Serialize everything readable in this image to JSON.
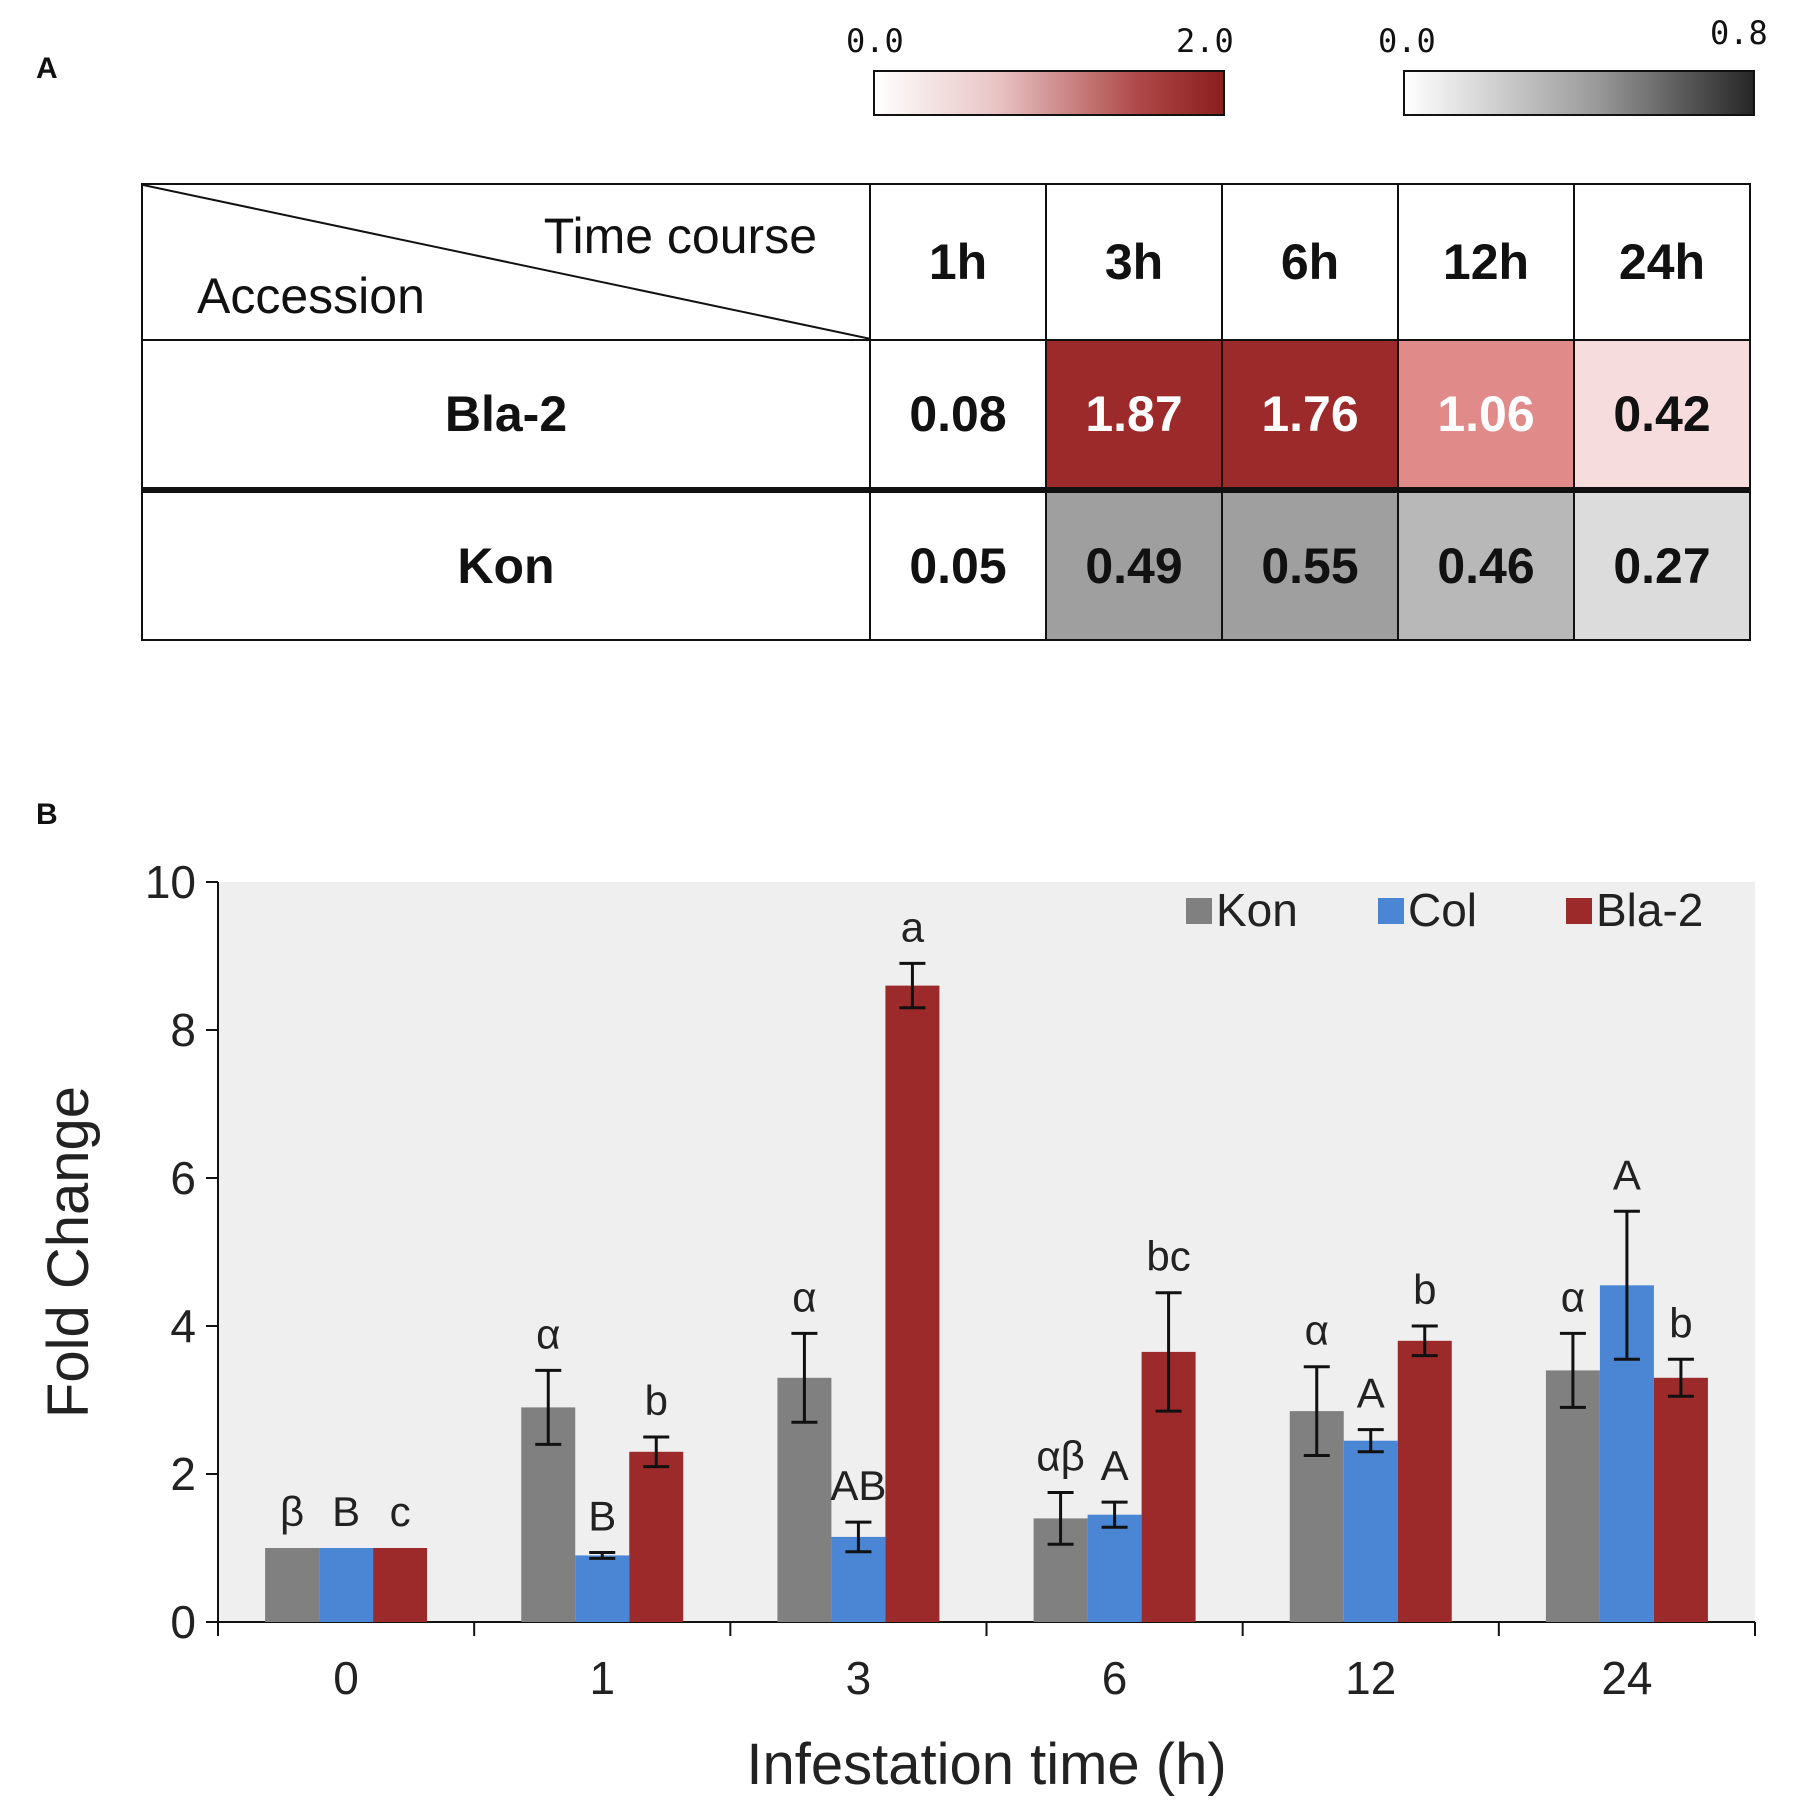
{
  "panel_a": {
    "label": "A",
    "colorbar_red": {
      "min_label": "0.0",
      "max_label": "2.0",
      "min": 0.0,
      "max": 2.0
    },
    "colorbar_gray": {
      "min_label": "0.0",
      "max_label": "0.8",
      "min": 0.0,
      "max": 0.8
    },
    "corner_time": "Time  course",
    "corner_accession": "Accession",
    "time_points": [
      "1h",
      "3h",
      "6h",
      "12h",
      "24h"
    ],
    "rows": [
      {
        "name": "Bla-2",
        "scale": "red",
        "values": [
          "0.08",
          "1.87",
          "1.76",
          "1.06",
          "0.42"
        ]
      },
      {
        "name": "Kon",
        "scale": "gray",
        "values": [
          "0.05",
          "0.49",
          "0.55",
          "0.46",
          "0.27"
        ]
      }
    ],
    "cell_colors": {
      "Bla-2": [
        "#ffffff",
        "#9c2a2a",
        "#9c2a2a",
        "#e18a8a",
        "#f6dcdc"
      ],
      "Kon": [
        "#ffffff",
        "#9f9f9f",
        "#9f9f9f",
        "#b8b8b8",
        "#dcdcdc"
      ]
    }
  },
  "chart_data": {
    "type": "bar",
    "panel_label": "B",
    "title": "",
    "xlabel": "Infestation  time (h)",
    "ylabel": "Fold Change",
    "categories": [
      "0",
      "1",
      "3",
      "6",
      "12",
      "24"
    ],
    "ylim": [
      0,
      10
    ],
    "yticks": [
      "0",
      "2",
      "4",
      "6",
      "8",
      "10"
    ],
    "legend_position": "top-right",
    "background": "#efefef",
    "series": [
      {
        "name": "Kon",
        "color": "#808080",
        "values": [
          1.0,
          2.9,
          3.3,
          1.4,
          2.85,
          3.4
        ],
        "errors": [
          0.0,
          0.5,
          0.6,
          0.35,
          0.6,
          0.5
        ],
        "letters": [
          "β",
          "α",
          "α",
          "αβ",
          "α",
          "α"
        ]
      },
      {
        "name": "Col",
        "color": "#4a86d4",
        "values": [
          1.0,
          0.9,
          1.15,
          1.45,
          2.45,
          4.55
        ],
        "errors": [
          0.0,
          0.04,
          0.2,
          0.17,
          0.15,
          1.0
        ],
        "letters": [
          "B",
          "B",
          "AB",
          "A",
          "A",
          "A"
        ]
      },
      {
        "name": "Bla-2",
        "color": "#9c2a2a",
        "values": [
          1.0,
          2.3,
          8.6,
          3.65,
          3.8,
          3.3
        ],
        "errors": [
          0.0,
          0.2,
          0.3,
          0.8,
          0.2,
          0.25
        ],
        "letters": [
          "c",
          "b",
          "a",
          "bc",
          "b",
          "b"
        ]
      }
    ]
  }
}
